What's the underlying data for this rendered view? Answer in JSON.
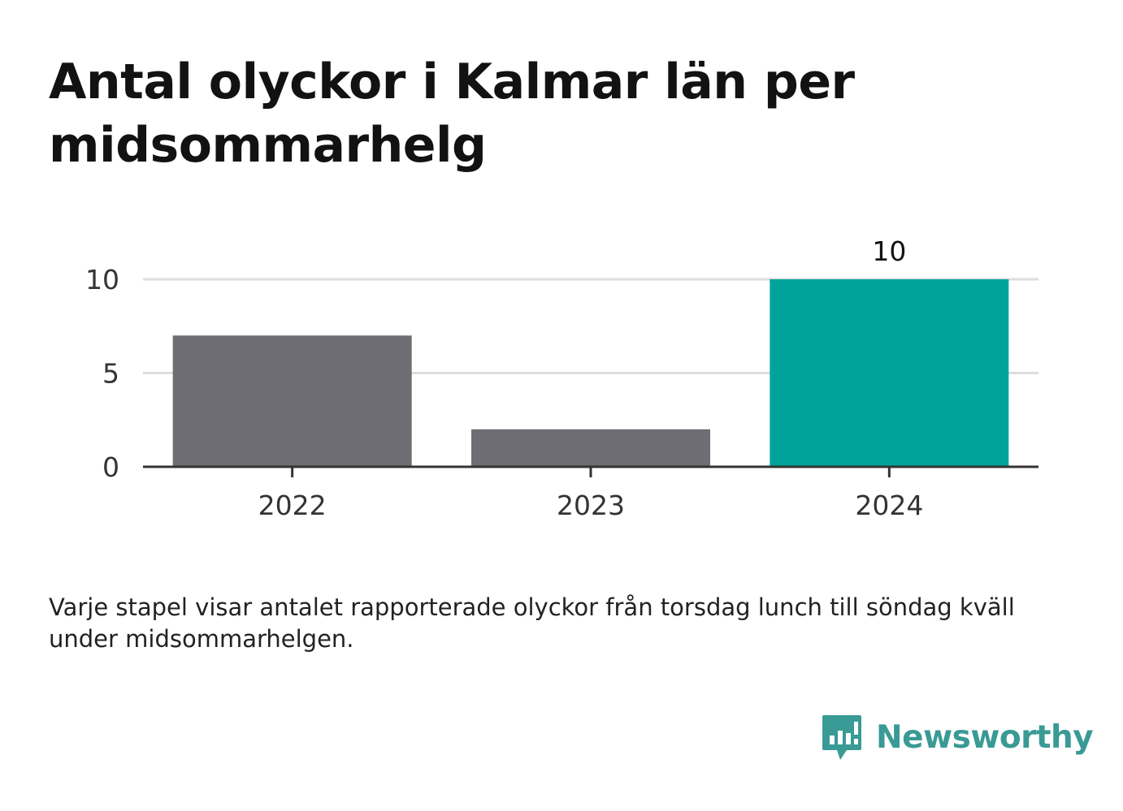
{
  "title": "Antal olyckor i Kalmar län per midsommarhelg",
  "caption": "Varje stapel visar antalet rapporterade olyckor från torsdag lunch till söndag kväll under midsommarhelgen.",
  "logo": {
    "text": "Newsworthy",
    "icon": "newsworthy-logo-icon",
    "color": "#3a9a95"
  },
  "chart_data": {
    "type": "bar",
    "categories": [
      "2022",
      "2023",
      "2024"
    ],
    "values": [
      7,
      2,
      10
    ],
    "value_labels": [
      "",
      "",
      "10"
    ],
    "colors": [
      "#6e6d73",
      "#6e6d73",
      "#00a39a"
    ],
    "title": "Antal olyckor i Kalmar län per midsommarhelg",
    "xlabel": "",
    "ylabel": "",
    "ylim": [
      0,
      10
    ],
    "yticks": [
      0,
      5,
      10
    ],
    "grid": true,
    "legend": "none"
  }
}
